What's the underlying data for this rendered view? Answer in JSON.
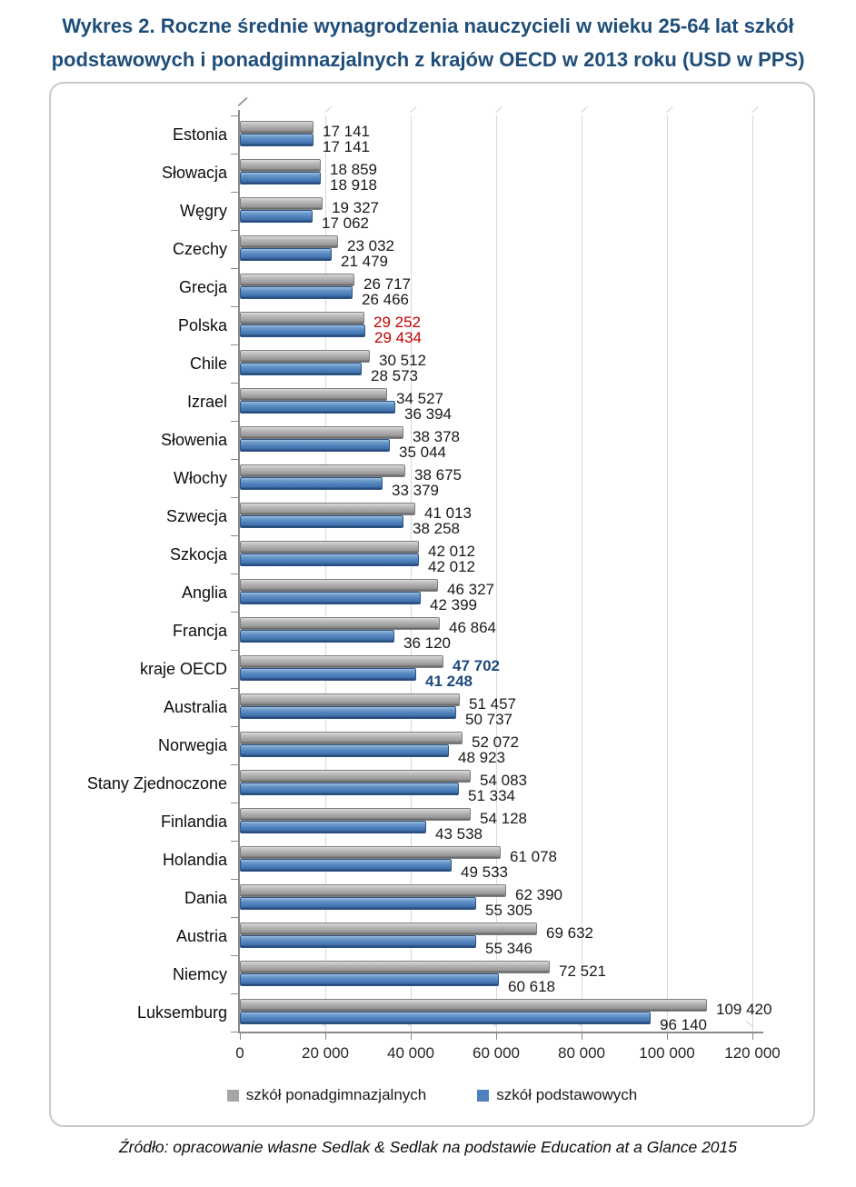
{
  "title": {
    "text": "Wykres 2. Roczne średnie wynagrodzenia nauczycieli w wieku 25-64 lat szkół podstawowych i ponadgimnazjalnych z krajów OECD w 2013 roku (USD w PPS)"
  },
  "chart_data": {
    "type": "bar",
    "orientation": "horizontal",
    "title": "Wykres 2. Roczne średnie wynagrodzenia nauczycieli w wieku 25-64 lat szkół podstawowych i ponadgimnazjalnych z krajów OECD w 2013 roku (USD w PPS)",
    "categories": [
      "Estonia",
      "Słowacja",
      "Węgry",
      "Czechy",
      "Grecja",
      "Polska",
      "Chile",
      "Izrael",
      "Słowenia",
      "Włochy",
      "Szwecja",
      "Szkocja",
      "Anglia",
      "Francja",
      "kraje OECD",
      "Australia",
      "Norwegia",
      "Stany Zjednoczone",
      "Finlandia",
      "Holandia",
      "Dania",
      "Austria",
      "Niemcy",
      "Luksemburg"
    ],
    "series": [
      {
        "name": "szkół ponadgimnazjalnych",
        "color": "#a6a6a6",
        "values": [
          17141,
          18859,
          19327,
          23032,
          26717,
          29252,
          30512,
          34527,
          38378,
          38675,
          41013,
          42012,
          46327,
          46864,
          47702,
          51457,
          52072,
          54083,
          54128,
          61078,
          62390,
          69632,
          72521,
          109420
        ]
      },
      {
        "name": "szkół podstawowych",
        "color": "#4f81bd",
        "values": [
          17141,
          18918,
          17062,
          21479,
          26466,
          29434,
          28573,
          36394,
          35044,
          33379,
          38258,
          42012,
          42399,
          36120,
          41248,
          50737,
          48923,
          51334,
          43538,
          49533,
          55305,
          55346,
          60618,
          96140
        ]
      }
    ],
    "value_labels": true,
    "value_label_styles": {
      "Polska": "red",
      "kraje OECD": "oecd"
    },
    "x_ticks": [
      "0",
      "20 000",
      "40 000",
      "60 000",
      "80 000",
      "100 000",
      "120 000"
    ],
    "xlim": [
      0,
      120000
    ],
    "grid": true,
    "legend_position": "bottom"
  },
  "legend": {
    "items": [
      {
        "label": "szkół ponadgimnazjalnych",
        "color": "#a6a6a6"
      },
      {
        "label": "szkół podstawowych",
        "color": "#4f81bd"
      }
    ]
  },
  "source": {
    "text": "Źródło: opracowanie własne Sedlak & Sedlak na podstawie Education at a Glance 2015"
  },
  "colors": {
    "title": "#1f4e79",
    "bar_gray": "#a6a6a6",
    "bar_blue": "#4f81bd",
    "value_default": "#1a1a1a",
    "value_red": "#c00000",
    "value_oecd_navy": "#1f497d",
    "gridline": "#d9d9d9",
    "axis": "#8a8a8a",
    "box_border": "#c9c9c9"
  }
}
